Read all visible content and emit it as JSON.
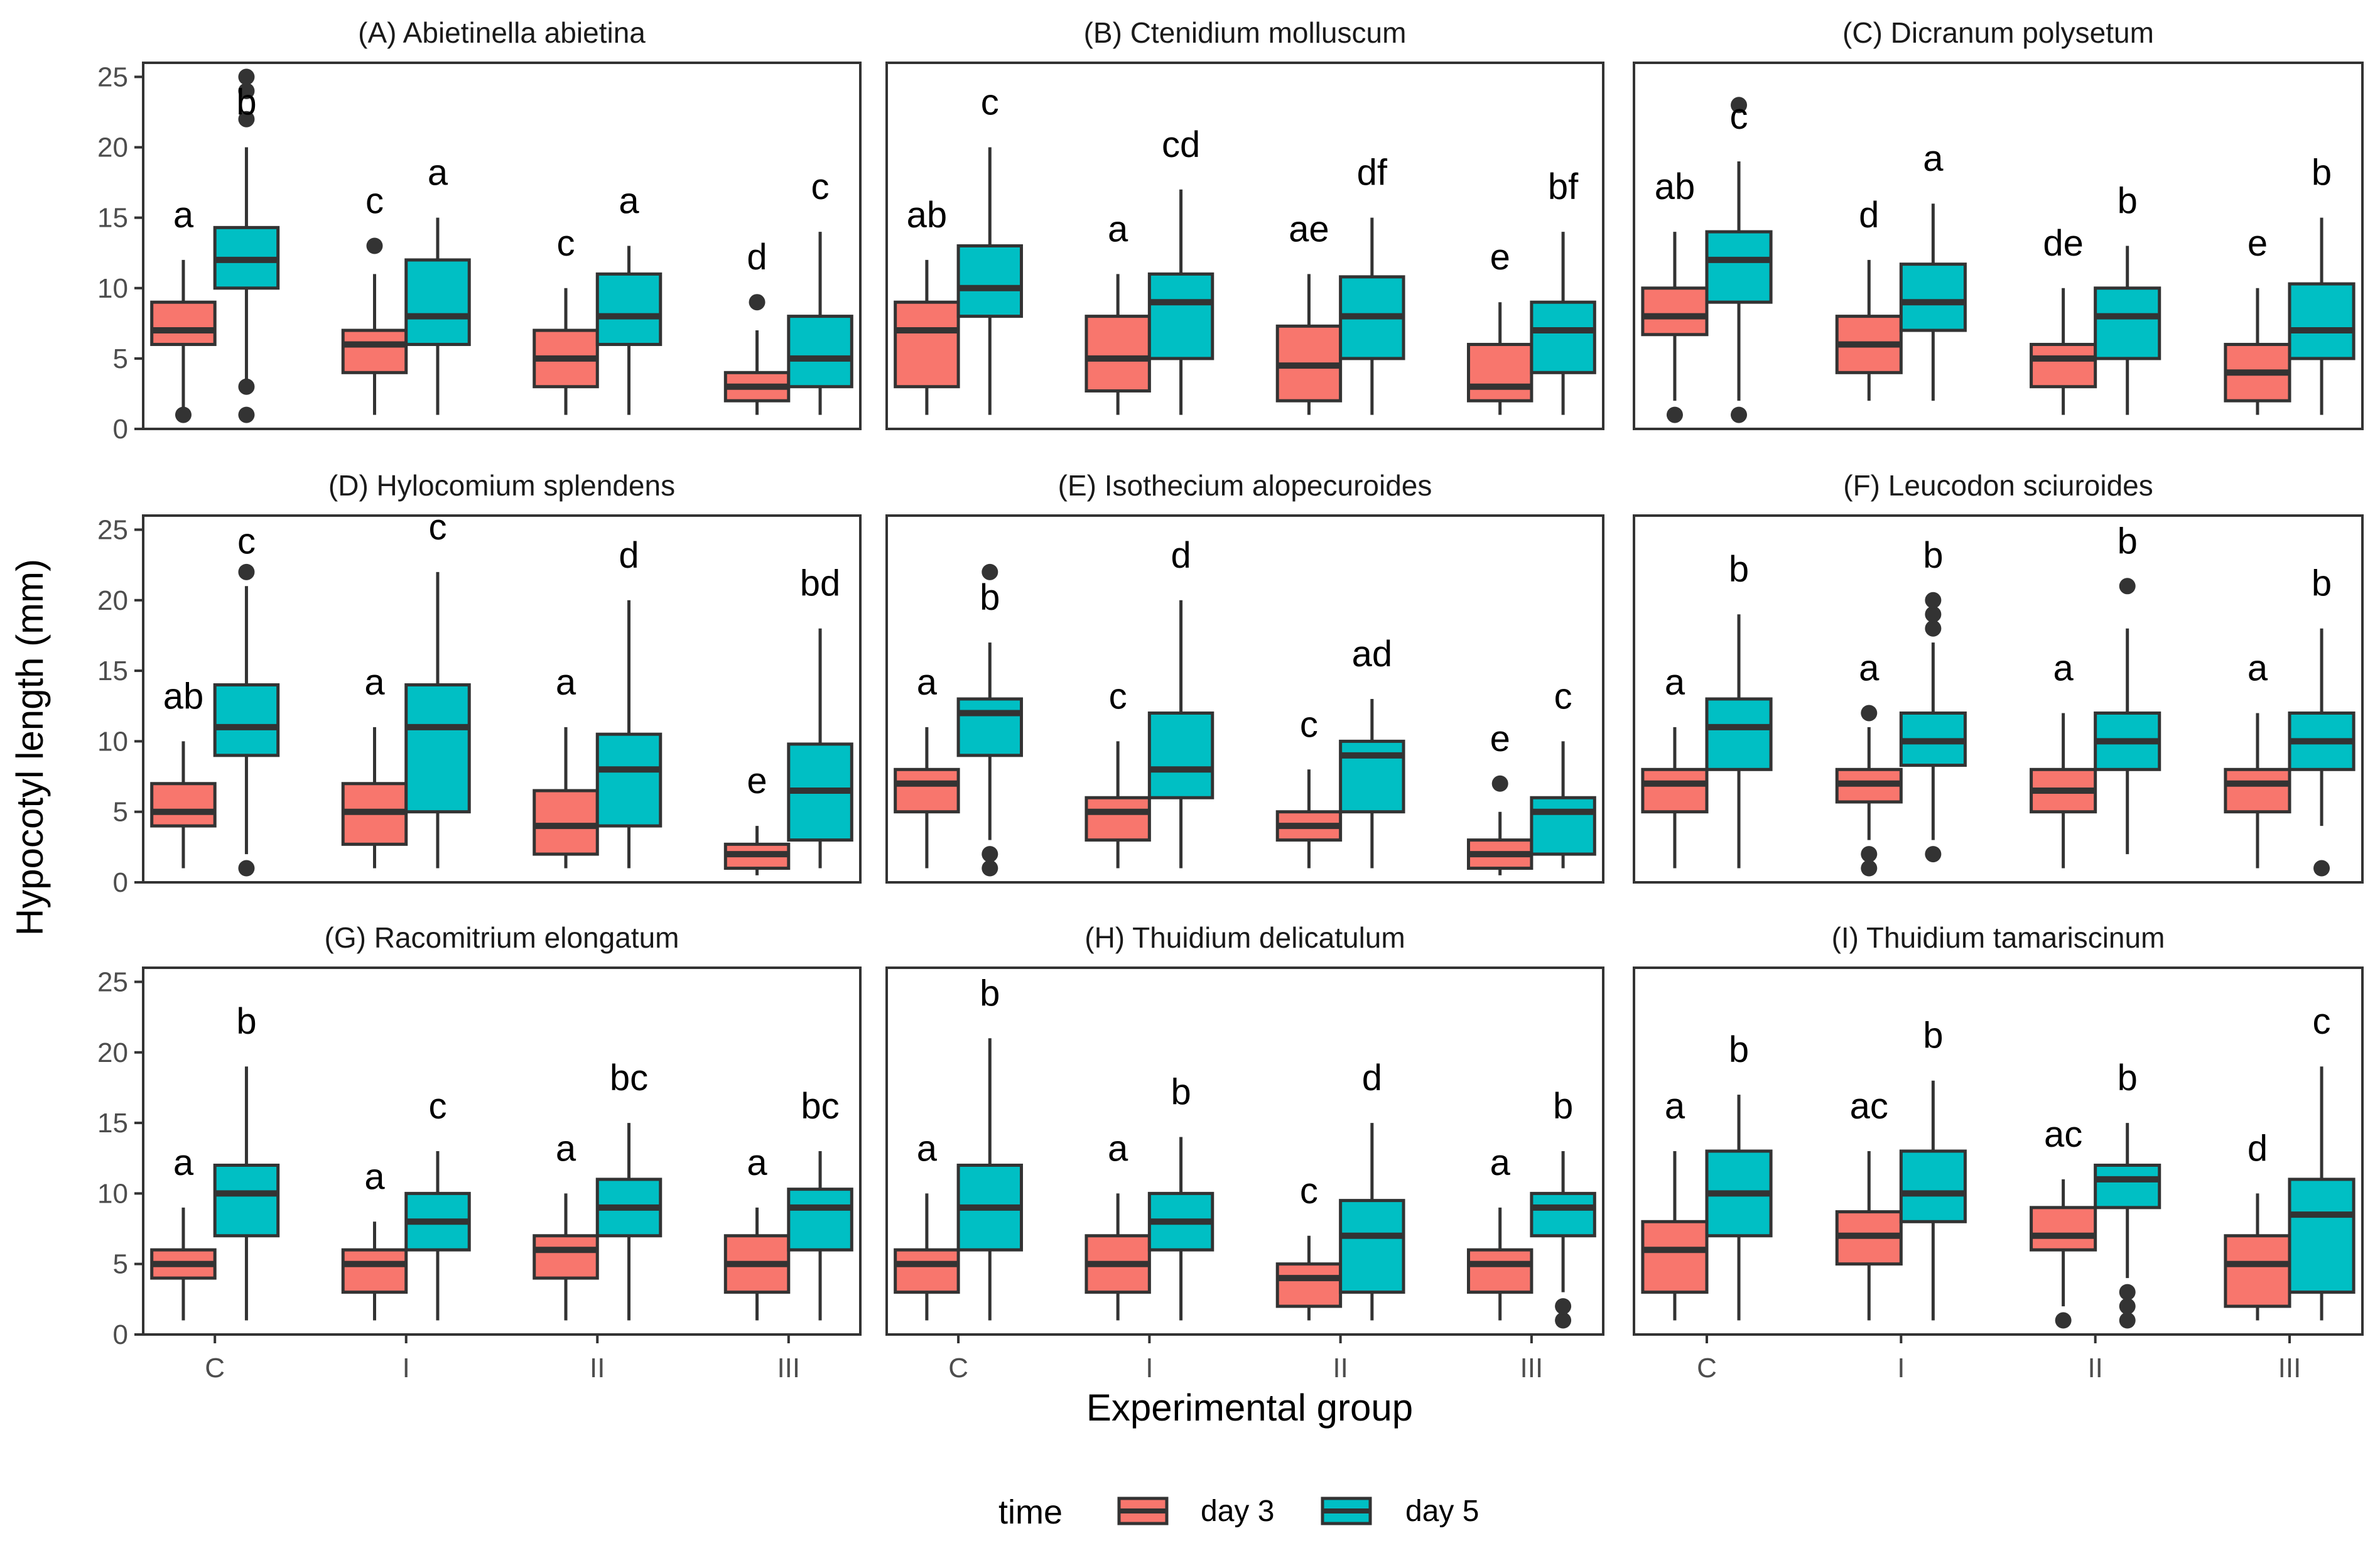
{
  "chart_data": {
    "type": "boxplot",
    "xlabel": "Experimental group",
    "ylabel": "Hypocotyl length (mm)",
    "categories": [
      "C",
      "I",
      "II",
      "III"
    ],
    "ylim": [
      0,
      26
    ],
    "yticks": [
      0,
      5,
      10,
      15,
      20,
      25
    ],
    "legend": {
      "title": "time",
      "placement": "bottom",
      "entries": [
        {
          "name": "day 3",
          "color": "#F8766D"
        },
        {
          "name": "day 5",
          "color": "#00BFC4"
        }
      ]
    },
    "colors": {
      "day 3": "#F8766D",
      "day 5": "#00BFC4"
    },
    "panels": [
      {
        "title": "(A) Abietinella abietina",
        "groups": [
          {
            "cat": "C",
            "day3": {
              "min": 1,
              "q1": 6,
              "med": 7,
              "q3": 9,
              "max": 12,
              "outliers": [
                1
              ],
              "letter": "a"
            },
            "day5": {
              "min": 3,
              "q1": 10,
              "med": 12,
              "q3": 14.3,
              "max": 20,
              "outliers": [
                1,
                3,
                22,
                24,
                25
              ],
              "letter": "b"
            }
          },
          {
            "cat": "I",
            "day3": {
              "min": 1,
              "q1": 4,
              "med": 6,
              "q3": 7,
              "max": 11,
              "outliers": [
                13
              ],
              "letter": "c"
            },
            "day5": {
              "min": 1,
              "q1": 6,
              "med": 8,
              "q3": 12,
              "max": 15,
              "outliers": [],
              "letter": "a"
            }
          },
          {
            "cat": "II",
            "day3": {
              "min": 1,
              "q1": 3,
              "med": 5,
              "q3": 7,
              "max": 10,
              "outliers": [],
              "letter": "c"
            },
            "day5": {
              "min": 1,
              "q1": 6,
              "med": 8,
              "q3": 11,
              "max": 13,
              "outliers": [],
              "letter": "a"
            }
          },
          {
            "cat": "III",
            "day3": {
              "min": 1,
              "q1": 2,
              "med": 3,
              "q3": 4,
              "max": 7,
              "outliers": [
                9
              ],
              "letter": "d"
            },
            "day5": {
              "min": 1,
              "q1": 3,
              "med": 5,
              "q3": 8,
              "max": 14,
              "outliers": [],
              "letter": "c"
            }
          }
        ]
      },
      {
        "title": "(B) Ctenidium molluscum",
        "groups": [
          {
            "cat": "C",
            "day3": {
              "min": 1,
              "q1": 3,
              "med": 7,
              "q3": 9,
              "max": 12,
              "outliers": [],
              "letter": "ab"
            },
            "day5": {
              "min": 1,
              "q1": 8,
              "med": 10,
              "q3": 13,
              "max": 20,
              "outliers": [],
              "letter": "c"
            }
          },
          {
            "cat": "I",
            "day3": {
              "min": 1,
              "q1": 2.7,
              "med": 5,
              "q3": 8,
              "max": 11,
              "outliers": [],
              "letter": "a"
            },
            "day5": {
              "min": 1,
              "q1": 5,
              "med": 9,
              "q3": 11,
              "max": 17,
              "outliers": [],
              "letter": "cd"
            }
          },
          {
            "cat": "II",
            "day3": {
              "min": 1,
              "q1": 2,
              "med": 4.5,
              "q3": 7.3,
              "max": 11,
              "outliers": [],
              "letter": "ae"
            },
            "day5": {
              "min": 1,
              "q1": 5,
              "med": 8,
              "q3": 10.8,
              "max": 15,
              "outliers": [],
              "letter": "df"
            }
          },
          {
            "cat": "III",
            "day3": {
              "min": 1,
              "q1": 2,
              "med": 3,
              "q3": 6,
              "max": 9,
              "outliers": [],
              "letter": "e"
            },
            "day5": {
              "min": 1,
              "q1": 4,
              "med": 7,
              "q3": 9,
              "max": 14,
              "outliers": [],
              "letter": "bf"
            }
          }
        ]
      },
      {
        "title": "(C) Dicranum polysetum",
        "groups": [
          {
            "cat": "C",
            "day3": {
              "min": 2,
              "q1": 6.7,
              "med": 8,
              "q3": 10,
              "max": 14,
              "outliers": [
                1
              ],
              "letter": "ab"
            },
            "day5": {
              "min": 2,
              "q1": 9,
              "med": 12,
              "q3": 14,
              "max": 19,
              "outliers": [
                1,
                23
              ],
              "letter": "c"
            }
          },
          {
            "cat": "I",
            "day3": {
              "min": 2,
              "q1": 4,
              "med": 6,
              "q3": 8,
              "max": 12,
              "outliers": [],
              "letter": "d"
            },
            "day5": {
              "min": 2,
              "q1": 7,
              "med": 9,
              "q3": 11.7,
              "max": 16,
              "outliers": [],
              "letter": "a"
            }
          },
          {
            "cat": "II",
            "day3": {
              "min": 1,
              "q1": 3,
              "med": 5,
              "q3": 6,
              "max": 10,
              "outliers": [],
              "letter": "de"
            },
            "day5": {
              "min": 1,
              "q1": 5,
              "med": 8,
              "q3": 10,
              "max": 13,
              "outliers": [],
              "letter": "b"
            }
          },
          {
            "cat": "III",
            "day3": {
              "min": 1,
              "q1": 2,
              "med": 4,
              "q3": 6,
              "max": 10,
              "outliers": [],
              "letter": "e"
            },
            "day5": {
              "min": 1,
              "q1": 5,
              "med": 7,
              "q3": 10.3,
              "max": 15,
              "outliers": [],
              "letter": "b"
            }
          }
        ]
      },
      {
        "title": "(D) Hylocomium splendens",
        "groups": [
          {
            "cat": "C",
            "day3": {
              "min": 1,
              "q1": 4,
              "med": 5,
              "q3": 7,
              "max": 10,
              "outliers": [],
              "letter": "ab"
            },
            "day5": {
              "min": 2,
              "q1": 9,
              "med": 11,
              "q3": 14,
              "max": 21,
              "outliers": [
                1,
                22
              ],
              "letter": "c"
            }
          },
          {
            "cat": "I",
            "day3": {
              "min": 1,
              "q1": 2.7,
              "med": 5,
              "q3": 7,
              "max": 11,
              "outliers": [],
              "letter": "a"
            },
            "day5": {
              "min": 1,
              "q1": 5,
              "med": 11,
              "q3": 14,
              "max": 22,
              "outliers": [],
              "letter": "c"
            }
          },
          {
            "cat": "II",
            "day3": {
              "min": 1,
              "q1": 2,
              "med": 4,
              "q3": 6.5,
              "max": 11,
              "outliers": [],
              "letter": "a"
            },
            "day5": {
              "min": 1,
              "q1": 4,
              "med": 8,
              "q3": 10.5,
              "max": 20,
              "outliers": [],
              "letter": "d"
            }
          },
          {
            "cat": "III",
            "day3": {
              "min": 0.5,
              "q1": 1,
              "med": 2,
              "q3": 2.7,
              "max": 4,
              "outliers": [],
              "letter": "e"
            },
            "day5": {
              "min": 1,
              "q1": 3,
              "med": 6.5,
              "q3": 9.8,
              "max": 18,
              "outliers": [],
              "letter": "bd"
            }
          }
        ]
      },
      {
        "title": "(E) Isothecium alopecuroides",
        "groups": [
          {
            "cat": "C",
            "day3": {
              "min": 1,
              "q1": 5,
              "med": 7,
              "q3": 8,
              "max": 11,
              "outliers": [],
              "letter": "a"
            },
            "day5": {
              "min": 3,
              "q1": 9,
              "med": 12,
              "q3": 13,
              "max": 17,
              "outliers": [
                1,
                2,
                22
              ],
              "letter": "b"
            }
          },
          {
            "cat": "I",
            "day3": {
              "min": 1,
              "q1": 3,
              "med": 5,
              "q3": 6,
              "max": 10,
              "outliers": [],
              "letter": "c"
            },
            "day5": {
              "min": 1,
              "q1": 6,
              "med": 8,
              "q3": 12,
              "max": 20,
              "outliers": [],
              "letter": "d"
            }
          },
          {
            "cat": "II",
            "day3": {
              "min": 1,
              "q1": 3,
              "med": 4,
              "q3": 5,
              "max": 8,
              "outliers": [],
              "letter": "c"
            },
            "day5": {
              "min": 1,
              "q1": 5,
              "med": 9,
              "q3": 10,
              "max": 13,
              "outliers": [],
              "letter": "ad"
            }
          },
          {
            "cat": "III",
            "day3": {
              "min": 0.5,
              "q1": 1,
              "med": 2,
              "q3": 3,
              "max": 5,
              "outliers": [
                7
              ],
              "letter": "e"
            },
            "day5": {
              "min": 1,
              "q1": 2,
              "med": 5,
              "q3": 6,
              "max": 10,
              "outliers": [],
              "letter": "c"
            }
          }
        ]
      },
      {
        "title": "(F) Leucodon sciuroides",
        "groups": [
          {
            "cat": "C",
            "day3": {
              "min": 1,
              "q1": 5,
              "med": 7,
              "q3": 8,
              "max": 11,
              "outliers": [],
              "letter": "a"
            },
            "day5": {
              "min": 1,
              "q1": 8,
              "med": 11,
              "q3": 13,
              "max": 19,
              "outliers": [],
              "letter": "b"
            }
          },
          {
            "cat": "I",
            "day3": {
              "min": 3,
              "q1": 5.7,
              "med": 7,
              "q3": 8,
              "max": 11,
              "outliers": [
                1,
                2,
                12
              ],
              "letter": "a"
            },
            "day5": {
              "min": 3,
              "q1": 8.3,
              "med": 10,
              "q3": 12,
              "max": 17,
              "outliers": [
                2,
                18,
                19,
                20
              ],
              "letter": "b"
            }
          },
          {
            "cat": "II",
            "day3": {
              "min": 1,
              "q1": 5,
              "med": 6.5,
              "q3": 8,
              "max": 12,
              "outliers": [],
              "letter": "a"
            },
            "day5": {
              "min": 2,
              "q1": 8,
              "med": 10,
              "q3": 12,
              "max": 18,
              "outliers": [
                21
              ],
              "letter": "b"
            }
          },
          {
            "cat": "III",
            "day3": {
              "min": 1,
              "q1": 5,
              "med": 7,
              "q3": 8,
              "max": 12,
              "outliers": [],
              "letter": "a"
            },
            "day5": {
              "min": 4,
              "q1": 8,
              "med": 10,
              "q3": 12,
              "max": 18,
              "outliers": [
                1
              ],
              "letter": "b"
            }
          }
        ]
      },
      {
        "title": "(G) Racomitrium elongatum",
        "groups": [
          {
            "cat": "C",
            "day3": {
              "min": 1,
              "q1": 4,
              "med": 5,
              "q3": 6,
              "max": 9,
              "outliers": [],
              "letter": "a"
            },
            "day5": {
              "min": 1,
              "q1": 7,
              "med": 10,
              "q3": 12,
              "max": 19,
              "outliers": [],
              "letter": "b"
            }
          },
          {
            "cat": "I",
            "day3": {
              "min": 1,
              "q1": 3,
              "med": 5,
              "q3": 6,
              "max": 8,
              "outliers": [],
              "letter": "a"
            },
            "day5": {
              "min": 1,
              "q1": 6,
              "med": 8,
              "q3": 10,
              "max": 13,
              "outliers": [],
              "letter": "c"
            }
          },
          {
            "cat": "II",
            "day3": {
              "min": 1,
              "q1": 4,
              "med": 6,
              "q3": 7,
              "max": 10,
              "outliers": [],
              "letter": "a"
            },
            "day5": {
              "min": 1,
              "q1": 7,
              "med": 9,
              "q3": 11,
              "max": 15,
              "outliers": [],
              "letter": "bc"
            }
          },
          {
            "cat": "III",
            "day3": {
              "min": 1,
              "q1": 3,
              "med": 5,
              "q3": 7,
              "max": 9,
              "outliers": [],
              "letter": "a"
            },
            "day5": {
              "min": 1,
              "q1": 6,
              "med": 9,
              "q3": 10.3,
              "max": 13,
              "outliers": [],
              "letter": "bc"
            }
          }
        ]
      },
      {
        "title": "(H) Thuidium delicatulum",
        "groups": [
          {
            "cat": "C",
            "day3": {
              "min": 1,
              "q1": 3,
              "med": 5,
              "q3": 6,
              "max": 10,
              "outliers": [],
              "letter": "a"
            },
            "day5": {
              "min": 1,
              "q1": 6,
              "med": 9,
              "q3": 12,
              "max": 21,
              "outliers": [],
              "letter": "b"
            }
          },
          {
            "cat": "I",
            "day3": {
              "min": 1,
              "q1": 3,
              "med": 5,
              "q3": 7,
              "max": 10,
              "outliers": [],
              "letter": "a"
            },
            "day5": {
              "min": 1,
              "q1": 6,
              "med": 8,
              "q3": 10,
              "max": 14,
              "outliers": [],
              "letter": "b"
            }
          },
          {
            "cat": "II",
            "day3": {
              "min": 1,
              "q1": 2,
              "med": 4,
              "q3": 5,
              "max": 7,
              "outliers": [],
              "letter": "c"
            },
            "day5": {
              "min": 1,
              "q1": 3,
              "med": 7,
              "q3": 9.5,
              "max": 15,
              "outliers": [],
              "letter": "d"
            }
          },
          {
            "cat": "III",
            "day3": {
              "min": 1,
              "q1": 3,
              "med": 5,
              "q3": 6,
              "max": 9,
              "outliers": [],
              "letter": "a"
            },
            "day5": {
              "min": 3,
              "q1": 7,
              "med": 9,
              "q3": 10,
              "max": 13,
              "outliers": [
                1,
                2
              ],
              "letter": "b"
            }
          }
        ]
      },
      {
        "title": "(I) Thuidium tamariscinum",
        "groups": [
          {
            "cat": "C",
            "day3": {
              "min": 1,
              "q1": 3,
              "med": 6,
              "q3": 8,
              "max": 13,
              "outliers": [],
              "letter": "a"
            },
            "day5": {
              "min": 1,
              "q1": 7,
              "med": 10,
              "q3": 13,
              "max": 17,
              "outliers": [],
              "letter": "b"
            }
          },
          {
            "cat": "I",
            "day3": {
              "min": 1,
              "q1": 5,
              "med": 7,
              "q3": 8.7,
              "max": 13,
              "outliers": [],
              "letter": "ac"
            },
            "day5": {
              "min": 1,
              "q1": 8,
              "med": 10,
              "q3": 13,
              "max": 18,
              "outliers": [],
              "letter": "b"
            }
          },
          {
            "cat": "II",
            "day3": {
              "min": 2,
              "q1": 6,
              "med": 7,
              "q3": 9,
              "max": 11,
              "outliers": [
                1
              ],
              "letter": "ac"
            },
            "day5": {
              "min": 4,
              "q1": 9,
              "med": 11,
              "q3": 12,
              "max": 15,
              "outliers": [
                1,
                2,
                3
              ],
              "letter": "b"
            }
          },
          {
            "cat": "III",
            "day3": {
              "min": 1,
              "q1": 2,
              "med": 5,
              "q3": 7,
              "max": 10,
              "outliers": [],
              "letter": "d"
            },
            "day5": {
              "min": 1,
              "q1": 3,
              "med": 8.5,
              "q3": 11,
              "max": 19,
              "outliers": [],
              "letter": "c"
            }
          }
        ]
      }
    ]
  }
}
